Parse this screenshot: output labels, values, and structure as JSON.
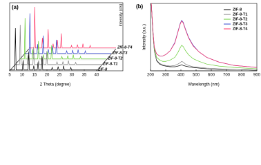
{
  "chart_data": [
    {
      "type": "line",
      "label": "(a)",
      "xlabel": "2 Theta (degree)",
      "ylabel": "Intensity (cts)",
      "x": [
        5,
        7.0,
        7.3,
        7.6,
        10.1,
        10.4,
        10.7,
        12.4,
        12.7,
        13.0,
        14.4,
        14.7,
        15.0,
        16.1,
        16.4,
        16.7,
        17.7,
        18.0,
        18.3,
        21.8,
        22.1,
        22.4,
        24.2,
        24.5,
        24.8,
        26.4,
        26.7,
        27.0,
        29.3,
        29.6,
        29.9,
        40
      ],
      "xlim": [
        5,
        40
      ],
      "xticks": [
        5,
        10,
        15,
        20,
        25,
        30,
        35,
        40
      ],
      "ylim": [
        0,
        100
      ],
      "series": [
        {
          "name": "ZIF-8",
          "color": "#000000",
          "values": [
            2,
            2,
            100,
            2,
            2,
            25,
            2,
            2,
            45,
            2,
            2,
            12,
            2,
            2,
            20,
            2,
            2,
            35,
            2,
            2,
            8,
            2,
            2,
            10,
            2,
            2,
            12,
            2,
            2,
            8,
            2,
            2
          ]
        },
        {
          "name": "ZIF-8-T1",
          "color": "#808080",
          "values": [
            2,
            2,
            95,
            2,
            2,
            24,
            2,
            2,
            43,
            2,
            2,
            11,
            2,
            2,
            19,
            2,
            2,
            33,
            2,
            2,
            8,
            2,
            2,
            9,
            2,
            2,
            11,
            2,
            2,
            7,
            2,
            2
          ]
        },
        {
          "name": "ZIF-8-T2",
          "color": "#66cc33",
          "values": [
            2,
            2,
            98,
            2,
            2,
            25,
            2,
            2,
            44,
            2,
            2,
            12,
            2,
            2,
            20,
            2,
            2,
            34,
            2,
            2,
            8,
            2,
            2,
            10,
            2,
            2,
            12,
            2,
            2,
            8,
            2,
            2
          ]
        },
        {
          "name": "ZIF-8-T3",
          "color": "#3344cc",
          "values": [
            2,
            2,
            96,
            2,
            2,
            24,
            2,
            2,
            44,
            2,
            2,
            12,
            2,
            2,
            19,
            2,
            2,
            34,
            2,
            2,
            8,
            2,
            2,
            10,
            2,
            2,
            11,
            2,
            2,
            8,
            2,
            2
          ]
        },
        {
          "name": "ZIF-8-T4",
          "color": "#ff3366",
          "values": [
            2,
            2,
            100,
            2,
            2,
            26,
            2,
            2,
            46,
            2,
            2,
            12,
            2,
            2,
            21,
            2,
            2,
            36,
            2,
            2,
            8,
            2,
            2,
            10,
            2,
            2,
            12,
            2,
            2,
            8,
            2,
            2
          ]
        }
      ]
    },
    {
      "type": "line",
      "label": "(b)",
      "xlabel": "Wavelength (nm)",
      "ylabel": "Intensity (a.u.)",
      "x": [
        205,
        215,
        225,
        240,
        260,
        280,
        300,
        330,
        360,
        380,
        395,
        405,
        415,
        430,
        450,
        480,
        520,
        570,
        650,
        750,
        900
      ],
      "xlim": [
        200,
        900
      ],
      "xticks": [
        200,
        300,
        400,
        500,
        600,
        700,
        800,
        900
      ],
      "ylim": [
        0,
        100
      ],
      "legend": "upper right",
      "series": [
        {
          "name": "ZIF-8",
          "color": "#000000",
          "values": [
            100,
            58,
            30,
            15,
            10,
            8,
            7,
            6,
            6,
            7,
            8,
            9,
            8,
            7,
            6,
            5,
            4,
            3,
            2,
            2,
            1
          ]
        },
        {
          "name": "ZIF-8-T1",
          "color": "#808080",
          "values": [
            100,
            60,
            31,
            16,
            11,
            9,
            8,
            7,
            8,
            10,
            12,
            14,
            13,
            10,
            8,
            6,
            5,
            4,
            3,
            2,
            1
          ]
        },
        {
          "name": "ZIF-8-T2",
          "color": "#66cc33",
          "values": [
            100,
            60,
            32,
            20,
            16,
            14,
            14,
            16,
            20,
            27,
            34,
            38,
            36,
            30,
            24,
            18,
            14,
            10,
            7,
            5,
            3
          ]
        },
        {
          "name": "ZIF-8-T3",
          "color": "#3344cc",
          "values": [
            100,
            62,
            35,
            25,
            22,
            22,
            24,
            30,
            42,
            58,
            70,
            75,
            72,
            62,
            50,
            38,
            28,
            20,
            13,
            8,
            5
          ]
        },
        {
          "name": "ZIF-8-T4",
          "color": "#ff3366",
          "values": [
            100,
            62,
            35,
            25,
            22,
            22,
            24,
            30,
            41,
            57,
            69,
            74,
            71,
            61,
            49,
            37,
            28,
            20,
            13,
            8,
            5
          ]
        }
      ]
    }
  ]
}
